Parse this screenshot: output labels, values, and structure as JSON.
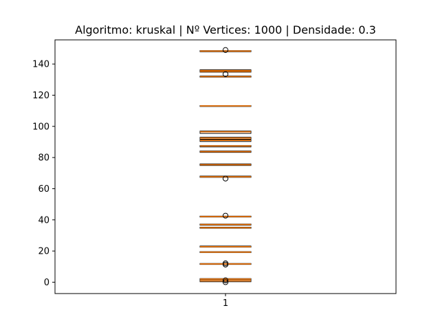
{
  "chart_data": {
    "type": "boxplot",
    "title": "Algoritmo: kruskal | Nº Vertices: 1000 | Densidade: 0.3",
    "xlabel": "",
    "ylabel": "",
    "x_tick_labels": [
      "1"
    ],
    "y_ticks": [
      0,
      20,
      40,
      60,
      80,
      100,
      120,
      140
    ],
    "ylim": [
      -7.3,
      155.5
    ],
    "grid": false,
    "legend": "none",
    "colors": {
      "box_edge": "#000000",
      "median": "#ff7f0e",
      "flier": "#000000"
    },
    "boxes": [
      {
        "q1": 0.3,
        "med": 0.9,
        "q3": 1.6
      },
      {
        "q1": 1.8,
        "med": 2.0,
        "q3": 2.3
      },
      {
        "q1": 11.4,
        "med": 11.7,
        "q3": 12.0
      },
      {
        "q1": 19.0,
        "med": 19.3,
        "q3": 19.6
      },
      {
        "q1": 22.5,
        "med": 22.8,
        "q3": 23.2
      },
      {
        "q1": 34.6,
        "med": 34.9,
        "q3": 35.3
      },
      {
        "q1": 36.6,
        "med": 37.0,
        "q3": 37.3
      },
      {
        "q1": 41.8,
        "med": 42.1,
        "q3": 42.4
      },
      {
        "q1": 67.3,
        "med": 67.6,
        "q3": 68.1
      },
      {
        "q1": 74.9,
        "med": 75.4,
        "q3": 75.9
      },
      {
        "q1": 83.3,
        "med": 83.8,
        "q3": 84.2
      },
      {
        "q1": 86.8,
        "med": 87.4,
        "q3": 87.7
      },
      {
        "q1": 90.3,
        "med": 91.0,
        "q3": 91.5
      },
      {
        "q1": 91.8,
        "med": 92.5,
        "q3": 93.0
      },
      {
        "q1": 95.5,
        "med": 96.5,
        "q3": 97.0
      },
      {
        "q1": 112.8,
        "med": 113.1,
        "q3": 113.3
      },
      {
        "q1": 131.6,
        "med": 131.9,
        "q3": 132.3
      },
      {
        "q1": 134.8,
        "med": 135.2,
        "q3": 135.7
      },
      {
        "q1": 135.5,
        "med": 135.8,
        "q3": 136.3
      },
      {
        "q1": 147.9,
        "med": 148.3,
        "q3": 148.6
      }
    ],
    "fliers": [
      0.0,
      1.2,
      11.3,
      12.1,
      42.7,
      66.5,
      133.5,
      149.0
    ]
  }
}
